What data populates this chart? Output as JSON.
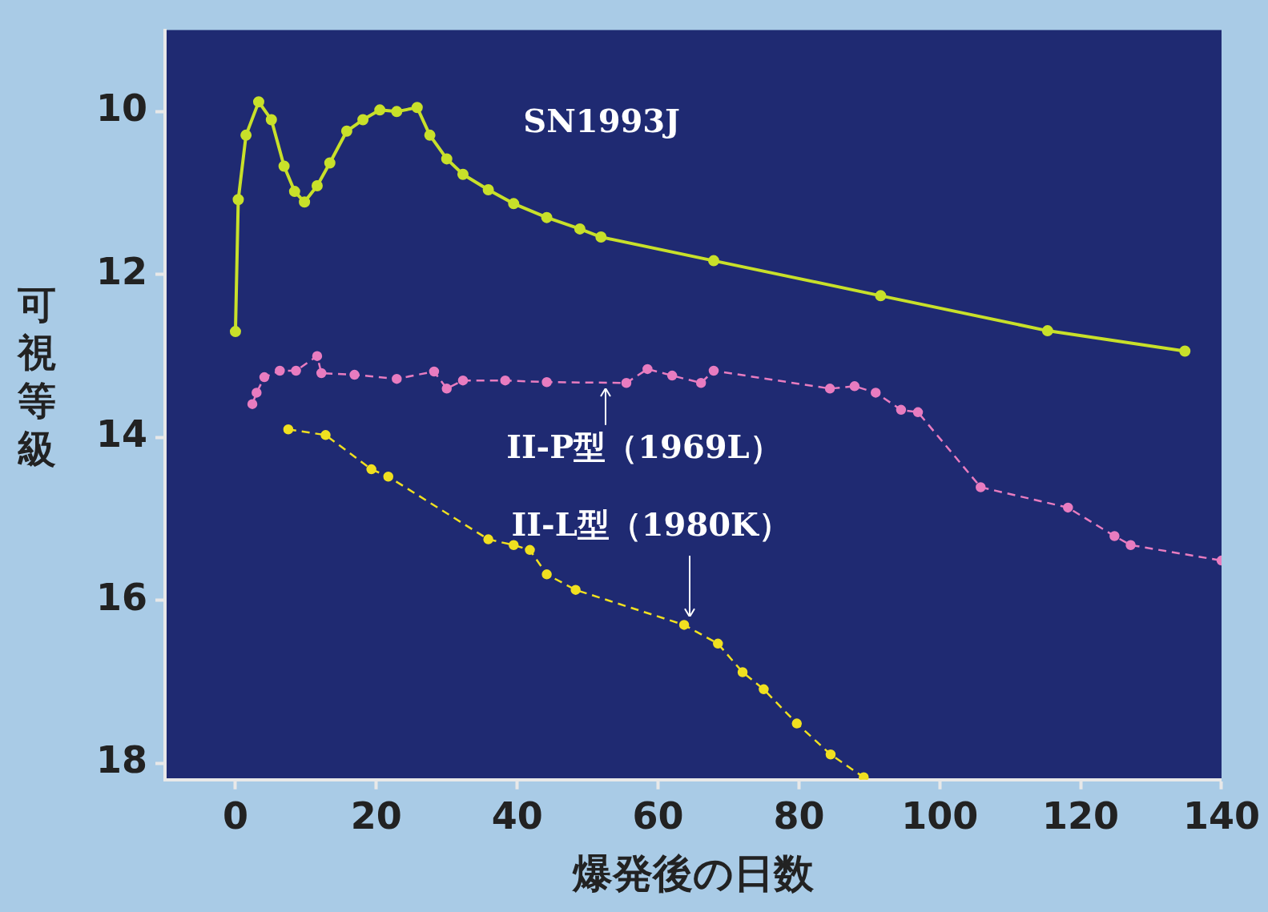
{
  "chart_data": {
    "type": "line",
    "xlabel": "爆発後の日数",
    "ylabel": "可視等級",
    "xlim": [
      -10,
      140
    ],
    "ylim": [
      18.2,
      9.0
    ],
    "xticks": [
      0,
      20,
      40,
      60,
      80,
      100,
      120,
      140
    ],
    "yticks": [
      10,
      12,
      14,
      16,
      18
    ],
    "grid": false,
    "legend": false,
    "marker": "circle",
    "series": [
      {
        "name": "SN1993J",
        "color": "#c8e02a",
        "line_style": "solid",
        "x": [
          0,
          0.4,
          1.5,
          3.3,
          5.1,
          6.9,
          8.4,
          9.8,
          11.6,
          13.4,
          15.8,
          18.1,
          20.5,
          22.9,
          25.8,
          27.6,
          30.0,
          32.3,
          35.9,
          39.5,
          44.2,
          48.9,
          51.9,
          67.9,
          91.6,
          115.3,
          134.8
        ],
        "values": [
          12.7,
          11.08,
          10.29,
          9.88,
          10.1,
          10.67,
          10.98,
          11.11,
          10.91,
          10.63,
          10.24,
          10.1,
          9.98,
          10.0,
          9.95,
          10.29,
          10.58,
          10.77,
          10.96,
          11.13,
          11.3,
          11.44,
          11.54,
          11.83,
          12.26,
          12.69,
          12.94
        ]
      },
      {
        "name": "II-P型（1969L）",
        "color": "#e87cc0",
        "line_style": "dashed",
        "x": [
          2.4,
          3.0,
          4.1,
          6.3,
          8.6,
          11.6,
          12.2,
          16.9,
          22.9,
          28.2,
          30.0,
          32.3,
          38.3,
          44.2,
          55.5,
          58.5,
          62.0,
          66.1,
          67.9,
          84.4,
          87.9,
          90.9,
          94.5,
          96.9,
          105.8,
          118.2,
          124.8,
          127.1,
          140.0
        ],
        "values": [
          13.59,
          13.45,
          13.26,
          13.18,
          13.18,
          13.0,
          13.21,
          13.23,
          13.28,
          13.19,
          13.4,
          13.3,
          13.3,
          13.32,
          13.33,
          13.16,
          13.24,
          13.33,
          13.18,
          13.4,
          13.37,
          13.45,
          13.66,
          13.69,
          14.61,
          14.86,
          15.21,
          15.32,
          15.51
        ]
      },
      {
        "name": "II-L型（1980K）",
        "color": "#f0e020",
        "line_style": "dashed",
        "x": [
          7.5,
          12.8,
          19.3,
          21.7,
          35.9,
          39.5,
          41.8,
          44.2,
          48.3,
          63.7,
          68.5,
          72.0,
          75.0,
          79.7,
          84.5,
          89.2
        ],
        "values": [
          13.9,
          13.97,
          14.39,
          14.48,
          15.25,
          15.32,
          15.38,
          15.68,
          15.87,
          16.3,
          16.53,
          16.88,
          17.09,
          17.51,
          17.89,
          18.17
        ]
      }
    ]
  }
}
